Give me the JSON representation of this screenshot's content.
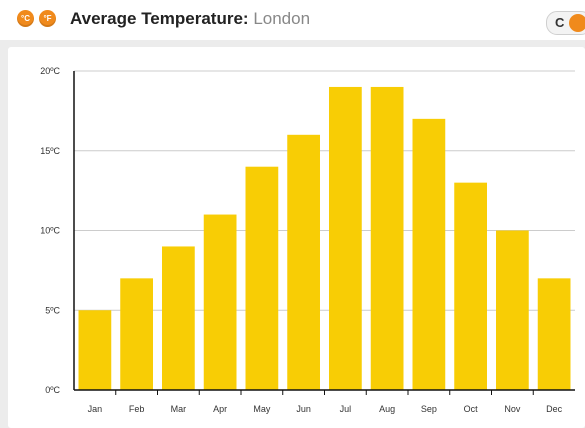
{
  "header": {
    "celsius_icon": "°C",
    "fahrenheit_icon": "°F",
    "title_bold": "Average Temperature:",
    "title_location": "London",
    "unit_toggle_label": "C"
  },
  "colors": {
    "bar": "#f8cd05",
    "accent": "#f08a1c",
    "axis": "#111111",
    "grid": "#cccccc"
  },
  "chart_data": {
    "type": "bar",
    "categories": [
      "Jan",
      "Feb",
      "Mar",
      "Apr",
      "May",
      "Jun",
      "Jul",
      "Aug",
      "Sep",
      "Oct",
      "Nov",
      "Dec"
    ],
    "values": [
      5,
      7,
      9,
      11,
      14,
      16,
      19,
      19,
      17,
      13,
      10,
      7
    ],
    "y_ticks": [
      0,
      5,
      10,
      15,
      20
    ],
    "y_tick_labels": [
      "0ºC",
      "5ºC",
      "10ºC",
      "15ºC",
      "20ºC"
    ],
    "ylim": [
      0,
      20
    ],
    "xlabel": "",
    "ylabel": "",
    "grid": true,
    "legend": "none"
  }
}
